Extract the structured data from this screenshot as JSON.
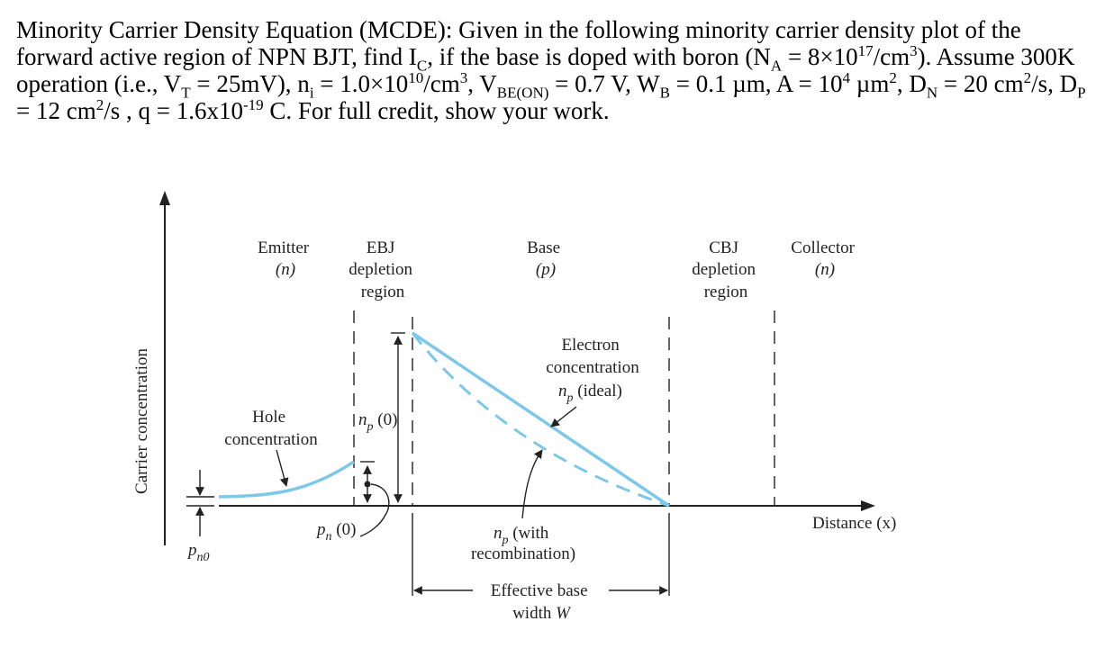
{
  "problem": {
    "t1": "Minority Carrier Density Equation (MCDE): Given in the following minority carrier density plot of the forward active region of NPN BJT, find I",
    "t1_sub": "C",
    "t2": ", if the base is doped with boron (N",
    "t2_sub": "A",
    "t3": " = 8×10",
    "t3_sup": "17",
    "t4": "/cm",
    "t4_sup": "3",
    "t5": "). Assume 300K operation (i.e., V",
    "t5_sub": "T",
    "t6": " = 25mV), n",
    "t6_sub": "i",
    "t7": " = 1.0×10",
    "t7_sup": "10",
    "t8": "/cm",
    "t8_sup": "3",
    "t9": ", V",
    "t9_sub": "BE(ON)",
    "t10": " = 0.7 V, W",
    "t10_sub": "B",
    "t11": " = 0.1 µm, A = 10",
    "t11_sup": "4",
    "t12": " µm",
    "t12_sup": "2",
    "t13": ", D",
    "t13_sub": "N",
    "t14": " = 20 cm",
    "t14_sup": "2",
    "t15": "/s, D",
    "t15_sub": "P",
    "t16": " = 12 cm",
    "t16_sup": "2",
    "t17": "/s , q = 1.6x10",
    "t17_sup": "-19",
    "t18": " C. For full credit, show your work."
  },
  "figure": {
    "y_axis_label": "Carrier concentration",
    "x_axis_label": "Distance (x)",
    "emitter_line1": "Emitter",
    "emitter_line2": "(n)",
    "ebj_line1": "EBJ",
    "ebj_line2": "depletion",
    "ebj_line3": "region",
    "base_line1": "Base",
    "base_line2": "(p)",
    "cbj_line1": "CBJ",
    "cbj_line2": "depletion",
    "cbj_line3": "region",
    "collector_line1": "Collector",
    "collector_line2": "(n)",
    "electron_line1": "Electron",
    "electron_line2": "concentration",
    "electron_line3": "n",
    "electron_line3_sub": "p",
    "electron_line3_rest": " (ideal)",
    "hole_line1": "Hole",
    "hole_line2": "concentration",
    "np0_main": "n",
    "np0_sub": "p",
    "np0_rest": " (0)",
    "pn0_main": "p",
    "pn0_sub": "n",
    "pn0_rest": " (0)",
    "pn0eq_main": "p",
    "pn0eq_sub": "n0",
    "recomb_line1_main": "n",
    "recomb_line1_sub": "p",
    "recomb_line1_rest": " (with",
    "recomb_line2": "recombination)",
    "width_line1": "Effective base",
    "width_line2_a": "width ",
    "width_line2_b": "W"
  },
  "colors": {
    "curve": "#7cc8ea",
    "ink": "#222222"
  }
}
